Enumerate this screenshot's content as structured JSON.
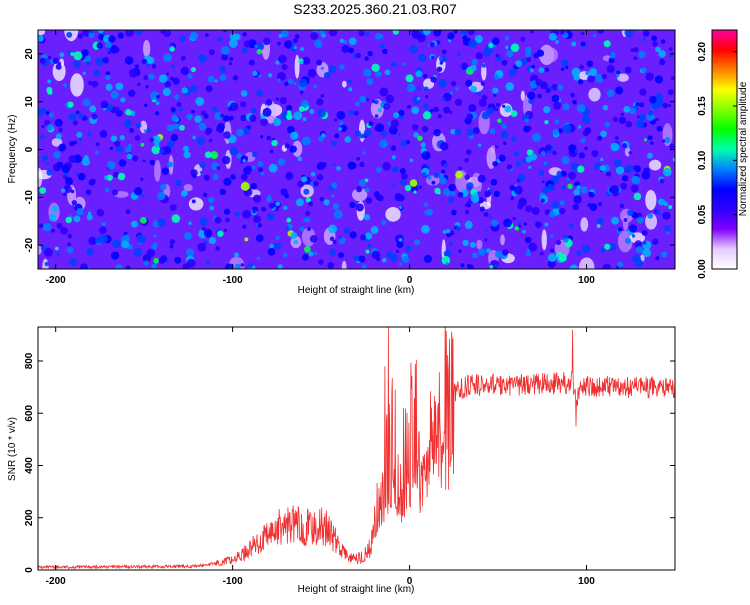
{
  "title": "S233.2025.360.21.03.R07",
  "chart_data": [
    {
      "type": "heatmap",
      "xlabel": "Height of straight line (km)",
      "ylabel": "Frequency (Hz)",
      "xlim": [
        -210,
        150
      ],
      "ylim": [
        -25,
        25
      ],
      "xticks": [
        -200,
        -100,
        0,
        100
      ],
      "xtick_labels": [
        "-200",
        "-100",
        "0",
        "100"
      ],
      "yticks": [
        -20,
        -10,
        0,
        10,
        20
      ],
      "ytick_labels": [
        "-20",
        "-10",
        "0",
        "10",
        "20"
      ],
      "colorbar": {
        "label": "Normalized spectral amplitude",
        "range": [
          0.0,
          0.22
        ],
        "ticks": [
          0.0,
          0.05,
          0.1,
          0.15,
          0.2
        ],
        "tick_labels": [
          "0.00",
          "0.05",
          "0.10",
          "0.15",
          "0.20"
        ],
        "colors": [
          "#ffffff",
          "#e6ccff",
          "#8000ff",
          "#3000ff",
          "#0000ff",
          "#0080ff",
          "#00ffb0",
          "#00ff00",
          "#80ff00",
          "#ffff00",
          "#ff8000",
          "#ff0000",
          "#ff00a0"
        ]
      }
    },
    {
      "type": "line",
      "xlabel": "Height of straight line (km)",
      "ylabel": "SNR (10 * v/v)",
      "xlim": [
        -210,
        150
      ],
      "ylim": [
        0,
        930
      ],
      "xticks": [
        -200,
        -100,
        0,
        100
      ],
      "xtick_labels": [
        "-200",
        "-100",
        "0",
        "100"
      ],
      "yticks": [
        0,
        200,
        400,
        600,
        800
      ],
      "ytick_labels": [
        "0",
        "200",
        "400",
        "600",
        "800"
      ],
      "line_color": "#f03030",
      "series": [
        {
          "name": "SNR",
          "x": [
            -210,
            -180,
            -150,
            -120,
            -110,
            -100,
            -95,
            -90,
            -85,
            -80,
            -75,
            -70,
            -65,
            -60,
            -55,
            -50,
            -45,
            -40,
            -35,
            -30,
            -28,
            -25,
            -22,
            -20,
            -18,
            -15,
            -13,
            -11,
            -9,
            -7,
            -5,
            -3,
            0,
            3,
            5,
            8,
            10,
            13,
            15,
            18,
            20,
            23,
            25,
            28,
            30,
            35,
            40,
            50,
            60,
            70,
            80,
            85,
            90,
            92,
            94,
            96,
            100,
            110,
            120,
            130,
            140,
            150
          ],
          "y": [
            10,
            12,
            12,
            15,
            25,
            40,
            55,
            85,
            105,
            130,
            160,
            170,
            175,
            165,
            160,
            170,
            150,
            90,
            50,
            40,
            45,
            60,
            100,
            160,
            250,
            320,
            420,
            520,
            500,
            440,
            380,
            440,
            520,
            570,
            450,
            540,
            600,
            620,
            640,
            650,
            660,
            670,
            680,
            690,
            700,
            705,
            708,
            710,
            710,
            712,
            712,
            715,
            715,
            740,
            640,
            700,
            700,
            705,
            700,
            698,
            700,
            700
          ]
        }
      ],
      "spikes": [
        {
          "x": -12,
          "y": 930
        },
        {
          "x": -14,
          "y": 780
        },
        {
          "x": -8,
          "y": 690
        },
        {
          "x": 92,
          "y": 920
        },
        {
          "x": 94,
          "y": 550
        }
      ]
    }
  ]
}
